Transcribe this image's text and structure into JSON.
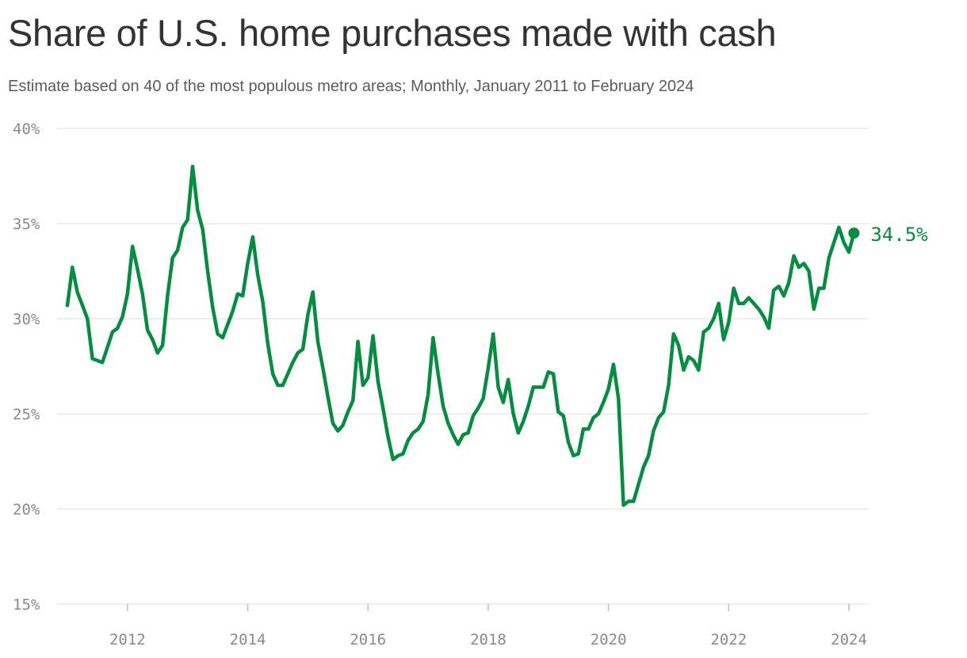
{
  "header": {
    "title": "Share of U.S. home purchases made with cash",
    "subtitle": "Estimate based on 40 of the most populous metro areas; Monthly, January 2011 to February 2024"
  },
  "colors": {
    "line": "#028e3f",
    "grid": "#dddddd",
    "tick_text": "#8a8a8a",
    "title": "#333333"
  },
  "chart_data": {
    "type": "line",
    "title": "Share of U.S. home purchases made with cash",
    "subtitle": "Estimate based on 40 of the most populous metro areas; Monthly, January 2011 to February 2024",
    "xlabel": "",
    "ylabel": "",
    "ylim": [
      15,
      40
    ],
    "y_ticks": [
      40,
      35,
      30,
      25,
      20,
      15
    ],
    "y_tick_labels": [
      "40%",
      "35%",
      "30%",
      "25%",
      "20%",
      "15%"
    ],
    "x_ticks": [
      "2012",
      "2014",
      "2016",
      "2018",
      "2020",
      "2022",
      "2024"
    ],
    "grid": true,
    "legend": "none",
    "end_label": "34.5%",
    "series": [
      {
        "start": "2011-01",
        "end": "2024-02",
        "frequency": "monthly",
        "values": [
          30.7,
          32.7,
          31.4,
          30.7,
          30.0,
          27.9,
          27.8,
          27.7,
          28.5,
          29.3,
          29.5,
          30.1,
          31.3,
          33.8,
          32.6,
          31.3,
          29.4,
          28.9,
          28.2,
          28.6,
          31.2,
          33.2,
          33.6,
          34.8,
          35.2,
          38.0,
          35.7,
          34.7,
          32.5,
          30.6,
          29.2,
          29.0,
          29.7,
          30.4,
          31.3,
          31.2,
          32.9,
          34.3,
          32.3,
          30.9,
          28.7,
          27.1,
          26.5,
          26.5,
          27.1,
          27.7,
          28.2,
          28.4,
          30.2,
          31.4,
          28.8,
          27.4,
          25.9,
          24.5,
          24.1,
          24.4,
          25.1,
          25.7,
          28.8,
          26.5,
          26.9,
          29.1,
          26.7,
          25.3,
          23.8,
          22.6,
          22.8,
          22.9,
          23.6,
          24.0,
          24.2,
          24.6,
          26.0,
          29.0,
          27.1,
          25.4,
          24.5,
          23.9,
          23.4,
          23.9,
          24.0,
          24.9,
          25.3,
          25.8,
          27.4,
          29.2,
          26.4,
          25.6,
          26.8,
          25.0,
          24.0,
          24.6,
          25.4,
          26.4,
          26.4,
          26.4,
          27.2,
          27.1,
          25.1,
          24.9,
          23.5,
          22.8,
          22.9,
          24.2,
          24.2,
          24.8,
          25.0,
          25.6,
          26.3,
          27.6,
          25.8,
          20.2,
          20.4,
          20.4,
          21.3,
          22.2,
          22.8,
          24.1,
          24.8,
          25.1,
          26.5,
          29.2,
          28.6,
          27.3,
          28.0,
          27.8,
          27.3,
          29.3,
          29.5,
          30.0,
          30.8,
          28.9,
          29.8,
          31.6,
          30.8,
          30.8,
          31.1,
          30.8,
          30.5,
          30.1,
          29.5,
          31.5,
          31.7,
          31.2,
          31.9,
          33.3,
          32.7,
          32.9,
          32.5,
          30.5,
          31.6,
          31.6,
          33.2,
          34.0,
          34.8,
          34.0,
          33.5,
          34.5
        ]
      }
    ]
  }
}
